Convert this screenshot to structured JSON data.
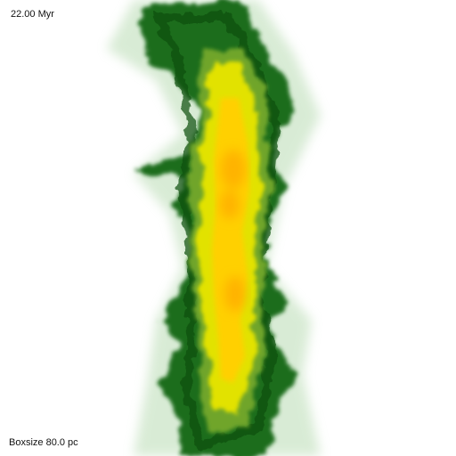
{
  "overlay": {
    "time": "22.00 Myr",
    "boxsize": "Boxsize  80.0 pc"
  },
  "colors": {
    "background": "#ffffff",
    "outer_halo": "#b9dcb4",
    "envelope": "#1f6d1a",
    "dark_core": "#0f4f0c",
    "mid": "#6fa52a",
    "inner": "#e2e200",
    "core": "#ffd000",
    "hot_spot": "#ff9a00"
  }
}
